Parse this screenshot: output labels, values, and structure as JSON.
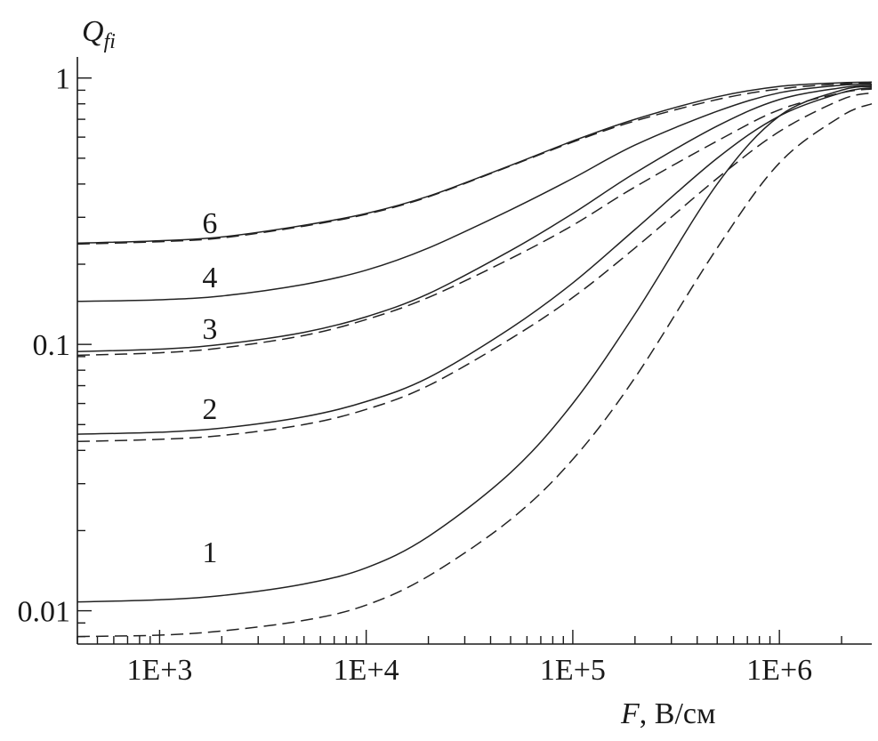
{
  "chart_data": {
    "type": "line",
    "xlabel_var": "F",
    "xlabel_unit": ", В/см",
    "ylabel_main": "Q",
    "ylabel_sub": "fi",
    "x_scale": "log",
    "y_scale": "log",
    "xlim": [
      400,
      2800000
    ],
    "ylim": [
      0.0075,
      1.2
    ],
    "x_tick_labels": [
      {
        "value": 1000,
        "label": "1E+3"
      },
      {
        "value": 10000,
        "label": "1E+4"
      },
      {
        "value": 100000,
        "label": "1E+5"
      },
      {
        "value": 1000000,
        "label": "1E+6"
      }
    ],
    "y_tick_labels": [
      {
        "value": 1,
        "label": "1"
      },
      {
        "value": 0.1,
        "label": "0.1"
      },
      {
        "value": 0.01,
        "label": "0.01"
      }
    ],
    "grid": false,
    "curve_labels": [
      {
        "text": "6",
        "x": 1300,
        "y": 0.262
      },
      {
        "text": "4",
        "x": 1300,
        "y": 0.164
      },
      {
        "text": "3",
        "x": 1300,
        "y": 0.105
      },
      {
        "text": "2",
        "x": 1300,
        "y": 0.0525
      },
      {
        "text": "1",
        "x": 1300,
        "y": 0.0152
      }
    ],
    "series": [
      {
        "style": "solid",
        "curve": "6",
        "points": [
          [
            400,
            0.24
          ],
          [
            1000,
            0.245
          ],
          [
            2000,
            0.253
          ],
          [
            5000,
            0.28
          ],
          [
            10000,
            0.31
          ],
          [
            20000,
            0.36
          ],
          [
            50000,
            0.47
          ],
          [
            100000,
            0.58
          ],
          [
            200000,
            0.7
          ],
          [
            500000,
            0.85
          ],
          [
            1000000,
            0.93
          ],
          [
            2000000,
            0.96
          ],
          [
            2800000,
            0.965
          ]
        ]
      },
      {
        "style": "dashed",
        "curve": "6",
        "points": [
          [
            400,
            0.238
          ],
          [
            1000,
            0.243
          ],
          [
            2000,
            0.251
          ],
          [
            5000,
            0.278
          ],
          [
            10000,
            0.308
          ],
          [
            20000,
            0.358
          ],
          [
            50000,
            0.468
          ],
          [
            100000,
            0.575
          ],
          [
            200000,
            0.69
          ],
          [
            500000,
            0.83
          ],
          [
            1000000,
            0.91
          ],
          [
            2000000,
            0.95
          ],
          [
            2800000,
            0.955
          ]
        ]
      },
      {
        "style": "solid",
        "curve": "4",
        "points": [
          [
            400,
            0.145
          ],
          [
            1000,
            0.147
          ],
          [
            2000,
            0.152
          ],
          [
            5000,
            0.168
          ],
          [
            10000,
            0.19
          ],
          [
            20000,
            0.23
          ],
          [
            50000,
            0.32
          ],
          [
            100000,
            0.42
          ],
          [
            200000,
            0.56
          ],
          [
            500000,
            0.75
          ],
          [
            1000000,
            0.88
          ],
          [
            2000000,
            0.94
          ],
          [
            2800000,
            0.95
          ]
        ]
      },
      {
        "style": "solid",
        "curve": "3",
        "points": [
          [
            400,
            0.094
          ],
          [
            1000,
            0.096
          ],
          [
            2000,
            0.1
          ],
          [
            5000,
            0.111
          ],
          [
            10000,
            0.127
          ],
          [
            20000,
            0.155
          ],
          [
            50000,
            0.225
          ],
          [
            100000,
            0.31
          ],
          [
            200000,
            0.44
          ],
          [
            500000,
            0.66
          ],
          [
            1000000,
            0.83
          ],
          [
            2000000,
            0.92
          ],
          [
            2800000,
            0.94
          ]
        ]
      },
      {
        "style": "dashed",
        "curve": "3",
        "points": [
          [
            400,
            0.091
          ],
          [
            1000,
            0.093
          ],
          [
            2000,
            0.097
          ],
          [
            5000,
            0.108
          ],
          [
            10000,
            0.124
          ],
          [
            20000,
            0.15
          ],
          [
            50000,
            0.21
          ],
          [
            100000,
            0.28
          ],
          [
            200000,
            0.39
          ],
          [
            500000,
            0.58
          ],
          [
            1000000,
            0.76
          ],
          [
            2000000,
            0.88
          ],
          [
            2800000,
            0.91
          ]
        ]
      },
      {
        "style": "solid",
        "curve": "2",
        "points": [
          [
            400,
            0.046
          ],
          [
            1000,
            0.0468
          ],
          [
            2000,
            0.0485
          ],
          [
            5000,
            0.0535
          ],
          [
            10000,
            0.061
          ],
          [
            20000,
            0.075
          ],
          [
            50000,
            0.115
          ],
          [
            100000,
            0.17
          ],
          [
            200000,
            0.27
          ],
          [
            500000,
            0.5
          ],
          [
            1000000,
            0.72
          ],
          [
            2000000,
            0.88
          ],
          [
            2800000,
            0.92
          ]
        ]
      },
      {
        "style": "dashed",
        "curve": "2",
        "points": [
          [
            400,
            0.0432
          ],
          [
            1000,
            0.044
          ],
          [
            2000,
            0.0455
          ],
          [
            5000,
            0.05
          ],
          [
            10000,
            0.057
          ],
          [
            20000,
            0.07
          ],
          [
            50000,
            0.105
          ],
          [
            100000,
            0.15
          ],
          [
            200000,
            0.23
          ],
          [
            500000,
            0.42
          ],
          [
            1000000,
            0.63
          ],
          [
            2000000,
            0.83
          ],
          [
            2800000,
            0.88
          ]
        ]
      },
      {
        "style": "solid",
        "curve": "1",
        "points": [
          [
            400,
            0.0108
          ],
          [
            1000,
            0.011
          ],
          [
            2000,
            0.0114
          ],
          [
            5000,
            0.0126
          ],
          [
            10000,
            0.0145
          ],
          [
            20000,
            0.019
          ],
          [
            50000,
            0.033
          ],
          [
            100000,
            0.06
          ],
          [
            200000,
            0.13
          ],
          [
            500000,
            0.4
          ],
          [
            1000000,
            0.72
          ],
          [
            2000000,
            0.9
          ],
          [
            2800000,
            0.93
          ]
        ]
      },
      {
        "style": "dashed",
        "curve": "1",
        "points": [
          [
            400,
            0.008
          ],
          [
            1000,
            0.0081
          ],
          [
            2000,
            0.0084
          ],
          [
            5000,
            0.0092
          ],
          [
            10000,
            0.0105
          ],
          [
            20000,
            0.0135
          ],
          [
            50000,
            0.022
          ],
          [
            100000,
            0.037
          ],
          [
            200000,
            0.075
          ],
          [
            500000,
            0.23
          ],
          [
            1000000,
            0.48
          ],
          [
            2000000,
            0.72
          ],
          [
            2800000,
            0.8
          ]
        ]
      }
    ]
  }
}
